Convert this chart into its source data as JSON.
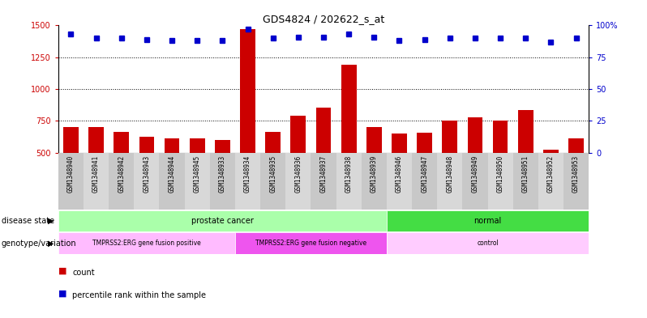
{
  "title": "GDS4824 / 202622_s_at",
  "samples": [
    "GSM1348940",
    "GSM1348941",
    "GSM1348942",
    "GSM1348943",
    "GSM1348944",
    "GSM1348945",
    "GSM1348933",
    "GSM1348934",
    "GSM1348935",
    "GSM1348936",
    "GSM1348937",
    "GSM1348938",
    "GSM1348939",
    "GSM1348946",
    "GSM1348947",
    "GSM1348948",
    "GSM1348949",
    "GSM1348950",
    "GSM1348951",
    "GSM1348952",
    "GSM1348953"
  ],
  "counts": [
    700,
    700,
    660,
    625,
    610,
    610,
    600,
    1470,
    665,
    790,
    855,
    1190,
    700,
    650,
    655,
    755,
    775,
    750,
    835,
    520,
    610
  ],
  "percentiles": [
    93,
    90,
    90,
    89,
    88,
    88,
    88,
    97,
    90,
    91,
    91,
    93,
    91,
    88,
    89,
    90,
    90,
    90,
    90,
    87,
    90
  ],
  "bar_color": "#cc0000",
  "dot_color": "#0000cc",
  "ylim_left": [
    500,
    1500
  ],
  "ylim_right": [
    0,
    100
  ],
  "yticks_left": [
    500,
    750,
    1000,
    1250,
    1500
  ],
  "yticks_right": [
    0,
    25,
    50,
    75,
    100
  ],
  "grid_values": [
    750,
    1000,
    1250
  ],
  "disease_state_groups": [
    {
      "label": "prostate cancer",
      "start": 0,
      "end": 12,
      "color": "#aaffaa"
    },
    {
      "label": "normal",
      "start": 13,
      "end": 20,
      "color": "#44dd44"
    }
  ],
  "genotype_groups": [
    {
      "label": "TMPRSS2:ERG gene fusion positive",
      "start": 0,
      "end": 6,
      "color": "#ffbbff"
    },
    {
      "label": "TMPRSS2:ERG gene fusion negative",
      "start": 7,
      "end": 12,
      "color": "#ee55ee"
    },
    {
      "label": "control",
      "start": 13,
      "end": 20,
      "color": "#ffccff"
    }
  ],
  "xtick_bg_even": "#c8c8c8",
  "xtick_bg_odd": "#d8d8d8",
  "legend_count_color": "#cc0000",
  "legend_dot_color": "#0000cc",
  "background_color": "#ffffff",
  "label_disease_state": "disease state",
  "label_genotype": "genotype/variation",
  "legend_count": "count",
  "legend_percentile": "percentile rank within the sample"
}
